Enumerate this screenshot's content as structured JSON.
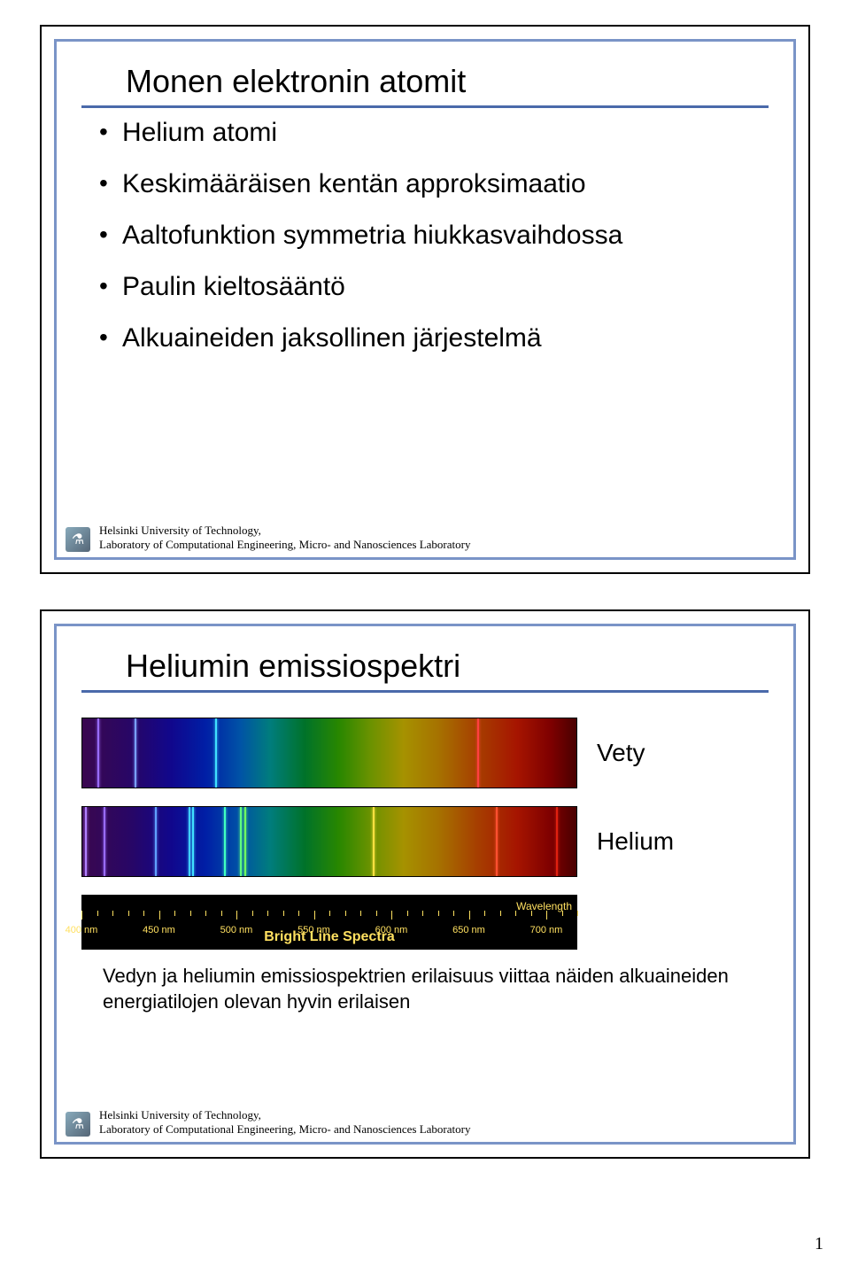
{
  "page_number": "1",
  "footer": {
    "line1": "Helsinki University of Technology,",
    "line2": "Laboratory of Computational Engineering, Micro- and Nanosciences Laboratory"
  },
  "slide1": {
    "title": "Monen elektronin atomit",
    "bullets": [
      "Helium atomi",
      "Keskimääräisen kentän approksimaatio",
      "Aaltofunktion symmetria hiukkasvaihdossa",
      "Paulin kieltosääntö",
      "Alkuaineiden jaksollinen järjestelmä"
    ]
  },
  "slide2": {
    "title": "Heliumin emissiospektri",
    "label_h": "Vety",
    "label_he": "Helium",
    "wavelength_label": "Wavelength",
    "bright_line_label": "Bright Line Spectra",
    "scale_ticks": [
      "400 nm",
      "450 nm",
      "500 nm",
      "550 nm",
      "600 nm",
      "650 nm",
      "700 nm"
    ],
    "conclusion": "Vedyn ja heliumin emissiospektrien erilaisuus viittaa näiden alkuaineiden energiatilojen olevan hyvin erilaisen"
  },
  "spectra": {
    "range_nm": [
      400,
      720
    ],
    "hydrogen_lines": [
      {
        "nm": 410,
        "color": "#9a6cff"
      },
      {
        "nm": 434,
        "color": "#7aa0ff"
      },
      {
        "nm": 486,
        "color": "#40e0ff"
      },
      {
        "nm": 656,
        "color": "#ff4040"
      }
    ],
    "helium_lines": [
      {
        "nm": 402,
        "color": "#b080ff"
      },
      {
        "nm": 414,
        "color": "#9a6cff"
      },
      {
        "nm": 447,
        "color": "#60a0ff"
      },
      {
        "nm": 469,
        "color": "#40d0ff"
      },
      {
        "nm": 471,
        "color": "#40e0ff"
      },
      {
        "nm": 492,
        "color": "#40ffc0"
      },
      {
        "nm": 502,
        "color": "#60ff80"
      },
      {
        "nm": 505,
        "color": "#70ff60"
      },
      {
        "nm": 588,
        "color": "#ffe040"
      },
      {
        "nm": 668,
        "color": "#ff5030"
      },
      {
        "nm": 707,
        "color": "#e02010"
      }
    ]
  },
  "colors": {
    "rule": "#4a6aaa",
    "frame": "#7a94c7",
    "scale_text": "#ffe060"
  }
}
